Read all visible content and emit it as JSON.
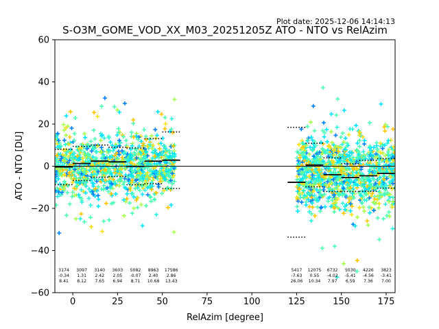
{
  "chart_data": {
    "type": "scatter",
    "title": "S-O3M_GOME_VOD_XX_M03_20251205Z ATO - NTO vs RelAzim",
    "plot_date": "Plot date: 2025-12-06 14:14:13",
    "xlabel": "RelAzim [degree]",
    "ylabel": "ATO - NTO [DU]",
    "xlim": [
      -10,
      180
    ],
    "ylim": [
      -60,
      60
    ],
    "xticks": [
      0,
      25,
      50,
      75,
      100,
      125,
      150,
      175
    ],
    "yticks": [
      -60,
      -40,
      -20,
      0,
      20,
      40,
      60
    ],
    "zero_line": 0,
    "colors": {
      "cyan": "#00e5ff",
      "light_cyan": "#2cf2e0",
      "mint": "#4dffb3",
      "lime": "#a8ff4d",
      "yellow": "#f5e01a",
      "orange": "#ffc400",
      "blue": "#0080ff",
      "dark_blue": "#0010d0",
      "stats_line": "#000000"
    },
    "clusters": [
      {
        "x": [
          -10,
          57
        ],
        "center": 0,
        "low": -20,
        "high": 22
      },
      {
        "x": [
          125,
          180
        ],
        "center": -3,
        "low": -32,
        "high": 18
      }
    ],
    "bins": [
      {
        "x0": -10,
        "x1": 0,
        "count": "3174",
        "mean": "-0.34",
        "std": "8.41"
      },
      {
        "x0": 0,
        "x1": 10,
        "count": "3097",
        "mean": "1.31",
        "std": "8.12"
      },
      {
        "x0": 10,
        "x1": 20,
        "count": "3140",
        "mean": "2.42",
        "std": "7.65"
      },
      {
        "x0": 20,
        "x1": 30,
        "count": "3603",
        "mean": "2.05",
        "std": "6.94"
      },
      {
        "x0": 30,
        "x1": 40,
        "count": "5082",
        "mean": "-0.07",
        "std": "8.71"
      },
      {
        "x0": 40,
        "x1": 50,
        "count": "8963",
        "mean": "2.40",
        "std": "10.68"
      },
      {
        "x0": 50,
        "x1": 60,
        "count": "17586",
        "mean": "2.86",
        "std": "13.43"
      },
      {
        "x0": 120,
        "x1": 130,
        "count": "5417",
        "mean": "-7.63",
        "std": "26.06"
      },
      {
        "x0": 130,
        "x1": 140,
        "count": "12075",
        "mean": "0.55",
        "std": "10.34"
      },
      {
        "x0": 140,
        "x1": 150,
        "count": "6732",
        "mean": "-4.02",
        "std": "7.97"
      },
      {
        "x0": 150,
        "x1": 160,
        "count": "5030",
        "mean": "-5.41",
        "std": "6.59"
      },
      {
        "x0": 160,
        "x1": 170,
        "count": "4226",
        "mean": "-4.56",
        "std": "7.36"
      },
      {
        "x0": 170,
        "x1": 180,
        "count": "3823",
        "mean": "-3.41",
        "std": "7.00"
      }
    ]
  }
}
